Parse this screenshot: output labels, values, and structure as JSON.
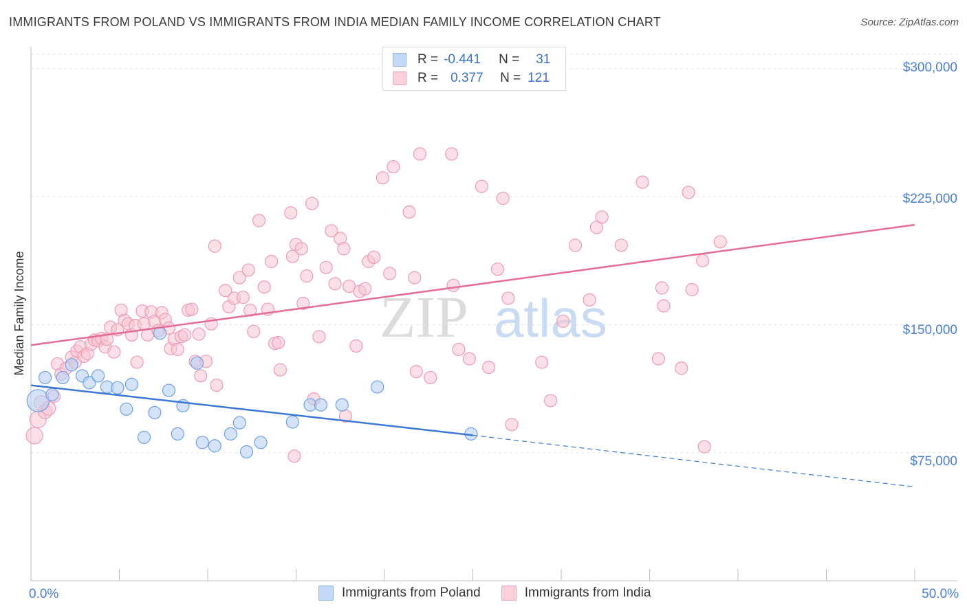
{
  "title": "IMMIGRANTS FROM POLAND VS IMMIGRANTS FROM INDIA MEDIAN FAMILY INCOME CORRELATION CHART",
  "source": "Source: ZipAtlas.com",
  "watermark": {
    "zip": "ZIP",
    "atlas": "atlas"
  },
  "legend": {
    "rows": [
      {
        "r_label": "R =",
        "r_value": "-0.441",
        "n_label": "N =",
        "n_value": "31",
        "color": "#a9c7f0"
      },
      {
        "r_label": "R =",
        "r_value": "0.377",
        "n_label": "N =",
        "n_value": "121",
        "color": "#f5b9cb"
      }
    ]
  },
  "bottom_legend": [
    {
      "label": "Immigrants from Poland",
      "color": "#a9c7f0"
    },
    {
      "label": "Immigrants from India",
      "color": "#f5b9cb"
    }
  ],
  "chart_data": {
    "type": "scatter",
    "ylabel": "Median Family Income",
    "xlim": [
      0,
      50
    ],
    "ylim": [
      0,
      310000
    ],
    "x_tick_labels": [
      "0.0%",
      "50.0%"
    ],
    "y_ticks": [
      {
        "value": 75000,
        "label": "$75,000"
      },
      {
        "value": 150000,
        "label": "$150,000"
      },
      {
        "value": 225000,
        "label": "$225,000"
      },
      {
        "value": 300000,
        "label": "$300,000"
      }
    ],
    "colors": {
      "poland": "#6fa0e6",
      "poland_line": "#3a78d8",
      "india": "#ef9ab5",
      "india_line": "#e56c98"
    },
    "series": [
      {
        "name": "Immigrants from Poland",
        "trend": {
          "x0": 0,
          "y0": 114500,
          "x1": 25,
          "y1": 85200,
          "x_dash_end": 50,
          "y_dash_end": 55000
        },
        "points": [
          [
            0.4,
            105500,
            16
          ],
          [
            0.8,
            119000,
            9
          ],
          [
            1.2,
            109000,
            9
          ],
          [
            1.8,
            119000,
            9
          ],
          [
            2.3,
            126500,
            9
          ],
          [
            2.9,
            120000,
            9
          ],
          [
            3.3,
            116000,
            9
          ],
          [
            3.8,
            120000,
            9
          ],
          [
            4.3,
            113500,
            9
          ],
          [
            4.9,
            113000,
            9
          ],
          [
            5.4,
            100500,
            9
          ],
          [
            5.7,
            115000,
            9
          ],
          [
            6.4,
            84000,
            9
          ],
          [
            7.0,
            98500,
            9
          ],
          [
            7.3,
            145000,
            9
          ],
          [
            7.8,
            111500,
            9
          ],
          [
            8.3,
            86000,
            9
          ],
          [
            8.6,
            102500,
            9
          ],
          [
            9.4,
            127500,
            9
          ],
          [
            9.7,
            81000,
            9
          ],
          [
            10.4,
            79000,
            9
          ],
          [
            11.3,
            86000,
            9
          ],
          [
            11.8,
            92500,
            9
          ],
          [
            12.2,
            75500,
            9
          ],
          [
            13.0,
            81000,
            9
          ],
          [
            14.8,
            93000,
            9
          ],
          [
            15.8,
            103000,
            9
          ],
          [
            16.4,
            103000,
            9
          ],
          [
            17.6,
            103000,
            9
          ],
          [
            19.6,
            113500,
            9
          ],
          [
            24.9,
            86000,
            9
          ]
        ]
      },
      {
        "name": "Immigrants from India",
        "trend": {
          "x0": 0,
          "y0": 138000,
          "x1": 50,
          "y1": 208500
        },
        "points": [
          [
            0.2,
            85000,
            12
          ],
          [
            0.4,
            94500,
            12
          ],
          [
            0.6,
            104000,
            11
          ],
          [
            0.8,
            99000,
            10
          ],
          [
            1.0,
            101000,
            10
          ],
          [
            1.3,
            108000,
            9
          ],
          [
            1.5,
            127000,
            9
          ],
          [
            1.7,
            121000,
            9
          ],
          [
            2.0,
            124500,
            9
          ],
          [
            2.3,
            131000,
            9
          ],
          [
            2.5,
            128000,
            9
          ],
          [
            2.6,
            134500,
            9
          ],
          [
            2.8,
            137000,
            9
          ],
          [
            3.0,
            131500,
            9
          ],
          [
            3.2,
            133000,
            9
          ],
          [
            3.4,
            138500,
            9
          ],
          [
            3.6,
            141000,
            9
          ],
          [
            3.8,
            140500,
            9
          ],
          [
            4.0,
            142000,
            9
          ],
          [
            4.2,
            137000,
            9
          ],
          [
            4.3,
            141500,
            9
          ],
          [
            4.5,
            148500,
            9
          ],
          [
            4.7,
            134000,
            9
          ],
          [
            4.9,
            147000,
            9
          ],
          [
            5.1,
            158500,
            9
          ],
          [
            5.3,
            152500,
            9
          ],
          [
            5.5,
            150500,
            9
          ],
          [
            5.7,
            144000,
            9
          ],
          [
            5.9,
            149500,
            9
          ],
          [
            6.0,
            128000,
            9
          ],
          [
            6.3,
            158000,
            9
          ],
          [
            6.4,
            150500,
            9
          ],
          [
            6.6,
            144000,
            9
          ],
          [
            6.8,
            157500,
            9
          ],
          [
            7.0,
            152000,
            9
          ],
          [
            7.2,
            146500,
            9
          ],
          [
            7.4,
            157000,
            9
          ],
          [
            7.6,
            153000,
            9
          ],
          [
            7.8,
            148000,
            9
          ],
          [
            7.9,
            136000,
            9
          ],
          [
            8.1,
            141500,
            9
          ],
          [
            8.3,
            135500,
            9
          ],
          [
            8.5,
            143000,
            9
          ],
          [
            8.7,
            144000,
            9
          ],
          [
            8.9,
            158500,
            9
          ],
          [
            9.1,
            159000,
            9
          ],
          [
            9.3,
            128500,
            9
          ],
          [
            9.5,
            144500,
            9
          ],
          [
            9.6,
            120000,
            9
          ],
          [
            9.9,
            128500,
            9
          ],
          [
            10.2,
            150500,
            9
          ],
          [
            10.4,
            196000,
            9
          ],
          [
            10.5,
            114500,
            9
          ],
          [
            11.0,
            170000,
            9
          ],
          [
            11.2,
            160500,
            9
          ],
          [
            11.5,
            165500,
            9
          ],
          [
            11.8,
            177500,
            9
          ],
          [
            12.0,
            166000,
            9
          ],
          [
            12.3,
            182000,
            9
          ],
          [
            12.4,
            158500,
            9
          ],
          [
            12.6,
            146000,
            9
          ],
          [
            12.9,
            211000,
            9
          ],
          [
            13.2,
            172000,
            9
          ],
          [
            13.4,
            159000,
            9
          ],
          [
            13.6,
            187000,
            9
          ],
          [
            13.8,
            139000,
            9
          ],
          [
            14.0,
            139500,
            9
          ],
          [
            14.1,
            123500,
            9
          ],
          [
            14.7,
            215500,
            9
          ],
          [
            14.8,
            190000,
            9
          ],
          [
            15.0,
            197000,
            9
          ],
          [
            15.3,
            194500,
            9
          ],
          [
            15.4,
            162500,
            9
          ],
          [
            15.6,
            178500,
            9
          ],
          [
            15.9,
            221000,
            9
          ],
          [
            16.3,
            143000,
            9
          ],
          [
            16.7,
            183500,
            9
          ],
          [
            17.0,
            205000,
            9
          ],
          [
            17.2,
            174000,
            9
          ],
          [
            17.5,
            200500,
            9
          ],
          [
            17.7,
            194500,
            9
          ],
          [
            18.0,
            172500,
            9
          ],
          [
            18.4,
            137500,
            9
          ],
          [
            18.6,
            169500,
            9
          ],
          [
            18.9,
            171000,
            9
          ],
          [
            19.1,
            187000,
            9
          ],
          [
            19.4,
            189500,
            9
          ],
          [
            19.9,
            236000,
            9
          ],
          [
            20.3,
            180000,
            9
          ],
          [
            20.5,
            242500,
            9
          ],
          [
            21.4,
            216000,
            9
          ],
          [
            21.7,
            177500,
            9
          ],
          [
            21.8,
            122500,
            9
          ],
          [
            22.0,
            250000,
            9
          ],
          [
            22.6,
            119000,
            9
          ],
          [
            23.8,
            250000,
            9
          ],
          [
            23.9,
            173000,
            9
          ],
          [
            24.2,
            135500,
            9
          ],
          [
            24.8,
            130000,
            9
          ],
          [
            25.5,
            231000,
            9
          ],
          [
            25.9,
            125000,
            9
          ],
          [
            26.4,
            182500,
            9
          ],
          [
            26.7,
            224000,
            9
          ],
          [
            27.0,
            165500,
            9
          ],
          [
            27.2,
            91500,
            9
          ],
          [
            28.9,
            128000,
            9
          ],
          [
            29.4,
            105500,
            9
          ],
          [
            30.1,
            152000,
            9
          ],
          [
            30.8,
            196500,
            9
          ],
          [
            31.6,
            164500,
            9
          ],
          [
            32.0,
            207000,
            9
          ],
          [
            32.3,
            213000,
            9
          ],
          [
            33.4,
            196500,
            9
          ],
          [
            34.6,
            233500,
            9
          ],
          [
            35.5,
            130000,
            9
          ],
          [
            35.7,
            171500,
            9
          ],
          [
            35.8,
            161000,
            9
          ],
          [
            36.8,
            124500,
            9
          ],
          [
            37.2,
            227500,
            9
          ],
          [
            37.4,
            170500,
            9
          ],
          [
            38.0,
            187500,
            9
          ],
          [
            38.1,
            78500,
            9
          ],
          [
            39.0,
            198500,
            9
          ],
          [
            16.0,
            106500,
            9
          ],
          [
            14.9,
            73000,
            9
          ],
          [
            17.8,
            96500,
            9
          ]
        ]
      }
    ]
  }
}
